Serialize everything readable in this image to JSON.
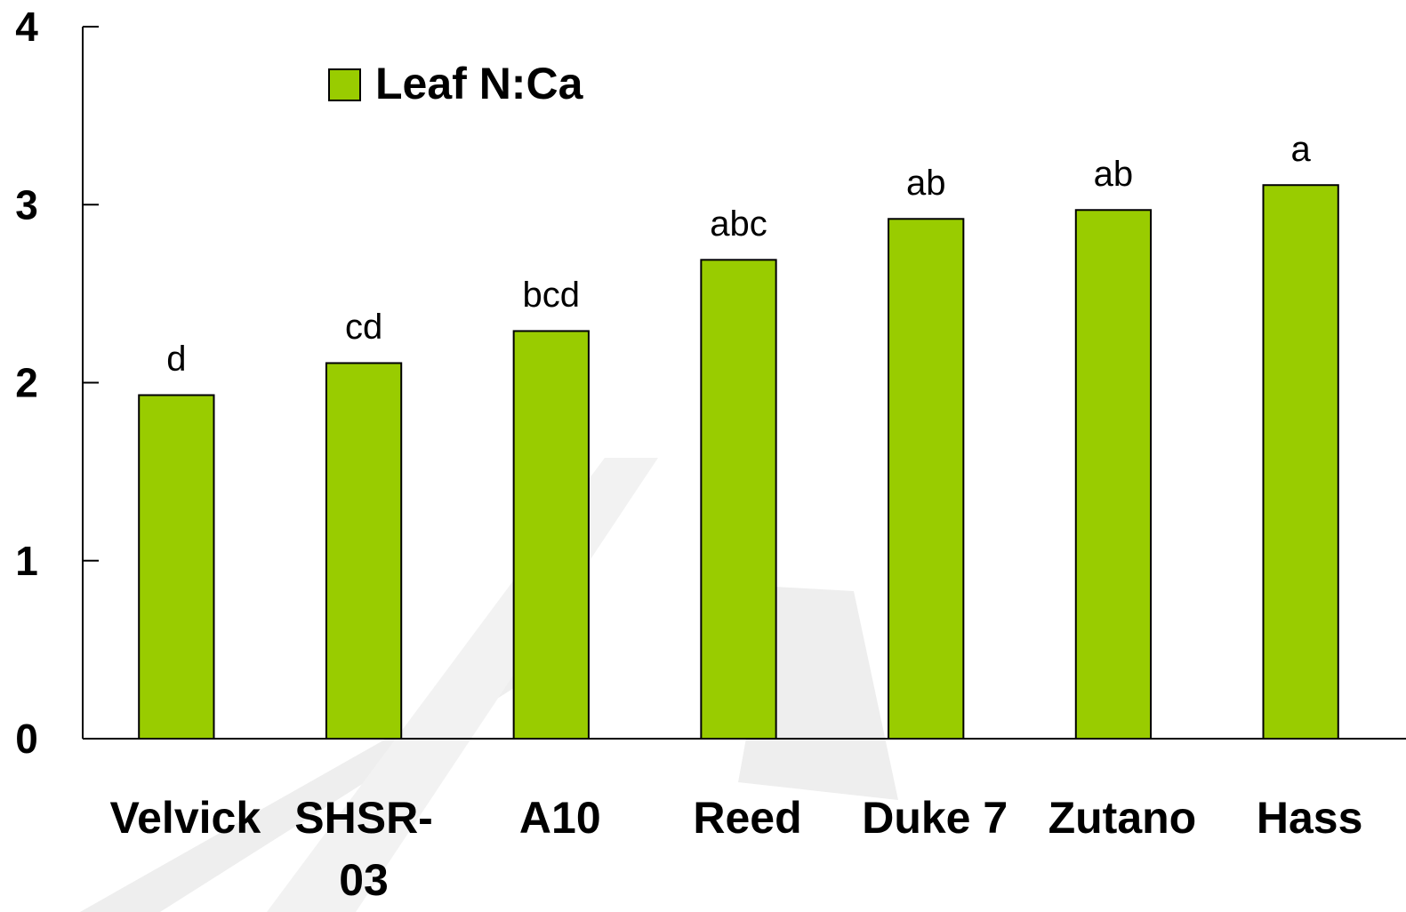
{
  "chart_data": {
    "type": "bar",
    "categories": [
      "Velvick",
      "SHSR-03",
      "A10",
      "Reed",
      "Duke 7",
      "Zutano",
      "Hass"
    ],
    "series": [
      {
        "name": "Leaf N:Ca",
        "color": "#99cc00",
        "values": [
          1.93,
          2.11,
          2.29,
          2.69,
          2.92,
          2.97,
          3.11
        ],
        "letters": [
          "d",
          "cd",
          "bcd",
          "abc",
          "ab",
          "ab",
          "a"
        ]
      }
    ],
    "ylim": [
      0,
      4
    ],
    "yticks": [
      0,
      1,
      2,
      3,
      4
    ],
    "grid": false,
    "legend": "top-left"
  }
}
